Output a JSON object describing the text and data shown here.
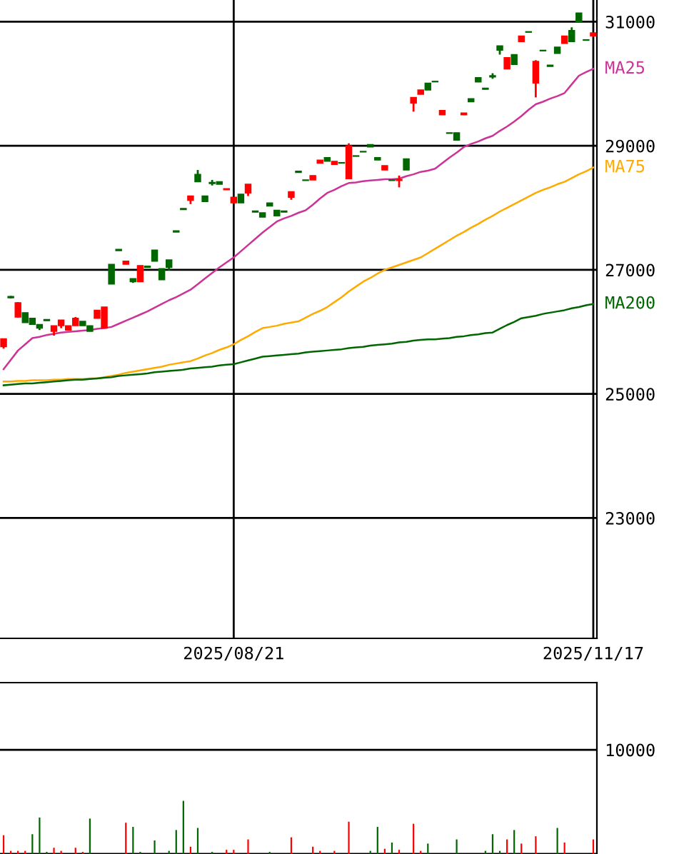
{
  "chart_data": [
    {
      "type": "candlestick",
      "categories": [
        null,
        null,
        null,
        null,
        null,
        null,
        null,
        null,
        null,
        null,
        null,
        null,
        null,
        null,
        null,
        null,
        null,
        null,
        null,
        null,
        null,
        null,
        null,
        null,
        null,
        null,
        null,
        null,
        null,
        null,
        null,
        null,
        "2025/08/21",
        null,
        null,
        null,
        null,
        null,
        null,
        null,
        null,
        null,
        null,
        null,
        null,
        null,
        null,
        null,
        null,
        null,
        null,
        null,
        null,
        null,
        null,
        null,
        null,
        null,
        null,
        null,
        null,
        null,
        null,
        null,
        null,
        null,
        null,
        null,
        null,
        null,
        null,
        null,
        null,
        null,
        null,
        null,
        null,
        null,
        null,
        null,
        null,
        null,
        "2025/11/17"
      ],
      "ohlc": [
        [
          25760,
          25890,
          25730,
          25890
        ],
        [
          26570,
          26580,
          26540,
          26550
        ],
        [
          26240,
          26480,
          26230,
          26470
        ],
        [
          26310,
          26310,
          26150,
          26150
        ],
        [
          26220,
          26220,
          26120,
          26120
        ],
        [
          26120,
          26120,
          26030,
          26060
        ],
        [
          26200,
          26200,
          26180,
          26180
        ],
        [
          26010,
          26100,
          25940,
          26100
        ],
        [
          26100,
          26190,
          26060,
          26190
        ],
        [
          26030,
          26100,
          26030,
          26100
        ],
        [
          26100,
          26240,
          26100,
          26220
        ],
        [
          26170,
          26170,
          26100,
          26100
        ],
        [
          26100,
          26100,
          26010,
          26010
        ],
        [
          26220,
          26350,
          26220,
          26350
        ],
        [
          26060,
          26400,
          26060,
          26400
        ],
        [
          27090,
          27090,
          26770,
          26770
        ],
        [
          27330,
          27330,
          27310,
          27310
        ],
        [
          27090,
          27140,
          27090,
          27140
        ],
        [
          26860,
          26860,
          26790,
          26810
        ],
        [
          26810,
          27070,
          26810,
          27070
        ],
        [
          27060,
          27060,
          27040,
          27040
        ],
        [
          27320,
          27320,
          27140,
          27140
        ],
        [
          27020,
          27020,
          26840,
          26840
        ],
        [
          27160,
          27160,
          26990,
          27040
        ],
        [
          27630,
          27630,
          27610,
          27610
        ],
        [
          27990,
          27990,
          27970,
          27970
        ],
        [
          28120,
          28190,
          28060,
          28190
        ],
        [
          28540,
          28610,
          28420,
          28420
        ],
        [
          28190,
          28190,
          28100,
          28100
        ],
        [
          28410,
          28450,
          28360,
          28390
        ],
        [
          28420,
          28420,
          28380,
          28380
        ],
        [
          28290,
          28310,
          28290,
          28310
        ],
        [
          28080,
          28170,
          28080,
          28170
        ],
        [
          28220,
          28220,
          28080,
          28080
        ],
        [
          28240,
          28380,
          28190,
          28380
        ],
        [
          27950,
          27950,
          27930,
          27930
        ],
        [
          27920,
          27920,
          27850,
          27850
        ],
        [
          28080,
          28080,
          28030,
          28030
        ],
        [
          27960,
          27960,
          27870,
          27870
        ],
        [
          27950,
          27950,
          27930,
          27930
        ],
        [
          28170,
          28260,
          28130,
          28260
        ],
        [
          28590,
          28590,
          28570,
          28570
        ],
        [
          28450,
          28450,
          28440,
          28440
        ],
        [
          28450,
          28520,
          28450,
          28520
        ],
        [
          28720,
          28770,
          28720,
          28770
        ],
        [
          28810,
          28810,
          28750,
          28750
        ],
        [
          28700,
          28750,
          28700,
          28750
        ],
        [
          28730,
          28730,
          28720,
          28720
        ],
        [
          28470,
          29040,
          28470,
          29000
        ],
        [
          28840,
          28840,
          28830,
          28830
        ],
        [
          28910,
          28910,
          28900,
          28900
        ],
        [
          29020,
          29020,
          28980,
          28980
        ],
        [
          28810,
          28810,
          28770,
          28770
        ],
        [
          28610,
          28680,
          28610,
          28680
        ],
        [
          28450,
          28450,
          28440,
          28440
        ],
        [
          28440,
          28520,
          28330,
          28460
        ],
        [
          28790,
          28790,
          28610,
          28610
        ],
        [
          29690,
          29780,
          29550,
          29780
        ],
        [
          29830,
          29900,
          29830,
          29900
        ],
        [
          30010,
          30010,
          29900,
          29900
        ],
        [
          30040,
          30040,
          30030,
          30030
        ],
        [
          29500,
          29570,
          29500,
          29570
        ],
        [
          29210,
          29210,
          29200,
          29200
        ],
        [
          29210,
          29210,
          29090,
          29090
        ],
        [
          29500,
          29530,
          29500,
          29530
        ],
        [
          29760,
          29760,
          29710,
          29710
        ],
        [
          30100,
          30100,
          30030,
          30030
        ],
        [
          29930,
          29930,
          29910,
          29910
        ],
        [
          30130,
          30170,
          30080,
          30110
        ],
        [
          30610,
          30610,
          30470,
          30540
        ],
        [
          30240,
          30420,
          30240,
          30420
        ],
        [
          30470,
          30470,
          30310,
          30310
        ],
        [
          30680,
          30770,
          30680,
          30770
        ],
        [
          30840,
          30840,
          30830,
          30830
        ],
        [
          30010,
          30380,
          29780,
          30360
        ],
        [
          30540,
          30540,
          30530,
          30530
        ],
        [
          30300,
          30300,
          30280,
          30280
        ],
        [
          30590,
          30590,
          30490,
          30490
        ],
        [
          30650,
          30770,
          30650,
          30770
        ],
        [
          30860,
          30910,
          30680,
          30680
        ],
        [
          31140,
          31140,
          31000,
          31000
        ],
        [
          30710,
          30710,
          30700,
          30700
        ],
        [
          30770,
          30820,
          30770,
          30820
        ]
      ],
      "colors": [
        "#ff0000",
        "#006600",
        "#ff0000",
        "#006600",
        "#006600",
        "#006600",
        "#006600",
        "#ff0000",
        "#ff0000",
        "#ff0000",
        "#ff0000",
        "#006600",
        "#006600",
        "#ff0000",
        "#ff0000",
        "#006600",
        "#006600",
        "#ff0000",
        "#006600",
        "#ff0000",
        "#006600",
        "#006600",
        "#006600",
        "#006600",
        "#006600",
        "#006600",
        "#ff0000",
        "#006600",
        "#006600",
        "#006600",
        "#006600",
        "#ff0000",
        "#ff0000",
        "#006600",
        "#ff0000",
        "#006600",
        "#006600",
        "#006600",
        "#006600",
        "#006600",
        "#ff0000",
        "#006600",
        "#006600",
        "#ff0000",
        "#ff0000",
        "#006600",
        "#ff0000",
        "#006600",
        "#ff0000",
        "#006600",
        "#006600",
        "#006600",
        "#006600",
        "#ff0000",
        "#006600",
        "#ff0000",
        "#006600",
        "#ff0000",
        "#ff0000",
        "#006600",
        "#006600",
        "#ff0000",
        "#006600",
        "#006600",
        "#ff0000",
        "#006600",
        "#006600",
        "#006600",
        "#006600",
        "#006600",
        "#ff0000",
        "#006600",
        "#ff0000",
        "#006600",
        "#ff0000",
        "#006600",
        "#006600",
        "#006600",
        "#ff0000",
        "#006600",
        "#006600",
        "#006600",
        "#ff0000"
      ],
      "series": [
        {
          "name": "MA25",
          "type": "line",
          "color": "#cc3399",
          "values": [
            25400,
            25550,
            25700,
            25800,
            25900,
            25920,
            25950,
            25970,
            25990,
            26000,
            26010,
            26020,
            26030,
            26050,
            26060,
            26080,
            26130,
            26180,
            26230,
            26280,
            26330,
            26390,
            26450,
            26510,
            26560,
            26620,
            26680,
            26770,
            26860,
            26950,
            27040,
            27120,
            27200,
            27300,
            27400,
            27500,
            27600,
            27690,
            27780,
            27830,
            27870,
            27920,
            27960,
            28050,
            28150,
            28240,
            28290,
            28350,
            28400,
            28410,
            28430,
            28440,
            28450,
            28460,
            28460,
            28470,
            28510,
            28540,
            28580,
            28600,
            28630,
            28720,
            28810,
            28890,
            28980,
            29030,
            29070,
            29120,
            29160,
            29240,
            29310,
            29390,
            29480,
            29580,
            29670,
            29710,
            29760,
            29800,
            29850,
            29990,
            30130,
            30190,
            30240
          ]
        },
        {
          "name": "MA75",
          "type": "line",
          "color": "#ffaa00",
          "values": [
            25200,
            25200,
            25210,
            25210,
            25220,
            25220,
            25220,
            25230,
            25230,
            25240,
            25240,
            25240,
            25250,
            25250,
            25270,
            25290,
            25310,
            25340,
            25360,
            25380,
            25400,
            25420,
            25440,
            25470,
            25490,
            25510,
            25530,
            25570,
            25620,
            25660,
            25710,
            25750,
            25800,
            25870,
            25930,
            26000,
            26060,
            26080,
            26100,
            26130,
            26150,
            26170,
            26230,
            26290,
            26340,
            26400,
            26480,
            26560,
            26650,
            26730,
            26810,
            26870,
            26940,
            27000,
            27040,
            27080,
            27120,
            27160,
            27200,
            27270,
            27340,
            27410,
            27480,
            27550,
            27610,
            27680,
            27740,
            27810,
            27870,
            27940,
            28000,
            28060,
            28120,
            28180,
            28240,
            28290,
            28330,
            28380,
            28420,
            28480,
            28540,
            28590,
            28650
          ]
        },
        {
          "name": "MA200",
          "type": "line",
          "color": "#006600",
          "values": [
            25140,
            25150,
            25160,
            25170,
            25170,
            25180,
            25190,
            25200,
            25210,
            25220,
            25230,
            25230,
            25240,
            25250,
            25260,
            25270,
            25290,
            25300,
            25310,
            25320,
            25330,
            25350,
            25360,
            25370,
            25380,
            25390,
            25410,
            25420,
            25430,
            25440,
            25460,
            25470,
            25480,
            25510,
            25540,
            25570,
            25600,
            25610,
            25620,
            25630,
            25640,
            25650,
            25670,
            25680,
            25690,
            25700,
            25710,
            25720,
            25740,
            25750,
            25760,
            25780,
            25790,
            25800,
            25810,
            25830,
            25840,
            25860,
            25870,
            25880,
            25880,
            25890,
            25900,
            25920,
            25930,
            25950,
            25960,
            25980,
            25990,
            26050,
            26110,
            26160,
            26220,
            26240,
            26260,
            26290,
            26310,
            26330,
            26350,
            26380,
            26400,
            26430,
            26450
          ]
        }
      ],
      "ylim": [
        21060,
        31350
      ],
      "yticks": [
        23000,
        25000,
        27000,
        29000,
        31000
      ],
      "grid": true,
      "legend": false
    },
    {
      "type": "bar",
      "categories": [
        null,
        null,
        null,
        null,
        null,
        null,
        null,
        null,
        null,
        null,
        null,
        null,
        null,
        null,
        null,
        null,
        null,
        null,
        null,
        null,
        null,
        null,
        null,
        null,
        null,
        null,
        null,
        null,
        null,
        null,
        null,
        null,
        "2025/08/21",
        null,
        null,
        null,
        null,
        null,
        null,
        null,
        null,
        null,
        null,
        null,
        null,
        null,
        null,
        null,
        null,
        null,
        null,
        null,
        null,
        null,
        null,
        null,
        null,
        null,
        null,
        null,
        null,
        null,
        null,
        null,
        null,
        null,
        null,
        null,
        null,
        null,
        null,
        null,
        null,
        null,
        null,
        null,
        null,
        null,
        null,
        null,
        null,
        null,
        "2025/11/17"
      ],
      "values": [
        1800,
        300,
        300,
        300,
        1900,
        3500,
        200,
        600,
        300,
        null,
        600,
        200,
        3400,
        null,
        null,
        null,
        null,
        3000,
        2600,
        200,
        null,
        1300,
        null,
        300,
        2300,
        5100,
        700,
        2500,
        null,
        200,
        null,
        400,
        400,
        null,
        1400,
        null,
        null,
        200,
        null,
        null,
        1600,
        null,
        null,
        700,
        300,
        null,
        300,
        null,
        3100,
        null,
        null,
        300,
        2600,
        500,
        1100,
        400,
        null,
        2900,
        300,
        1000,
        null,
        null,
        null,
        1400,
        null,
        null,
        null,
        300,
        1900,
        300,
        1400,
        2300,
        1000,
        null,
        1700,
        null,
        null,
        2500,
        1100,
        null,
        null,
        null,
        1400
      ],
      "colors": [
        "#ff0000",
        "#ff0000",
        "#ff0000",
        "#ff0000",
        "#006600",
        "#006600",
        "#006600",
        "#ff0000",
        "#ff0000",
        null,
        "#ff0000",
        "#ff0000",
        "#006600",
        null,
        null,
        null,
        null,
        "#ff0000",
        "#006600",
        "#006600",
        null,
        "#006600",
        null,
        "#006600",
        "#006600",
        "#006600",
        "#ff0000",
        "#006600",
        null,
        "#006600",
        null,
        "#ff0000",
        "#ff0000",
        null,
        "#ff0000",
        null,
        null,
        "#006600",
        null,
        null,
        "#ff0000",
        null,
        null,
        "#ff0000",
        "#ff0000",
        null,
        "#ff0000",
        null,
        "#ff0000",
        null,
        null,
        "#006600",
        "#006600",
        "#ff0000",
        "#006600",
        "#ff0000",
        null,
        "#ff0000",
        "#ff0000",
        "#006600",
        null,
        null,
        null,
        "#006600",
        null,
        null,
        null,
        "#006600",
        "#006600",
        "#006600",
        "#ff0000",
        "#006600",
        "#ff0000",
        null,
        "#ff0000",
        null,
        null,
        "#006600",
        "#ff0000",
        null,
        null,
        null,
        "#ff0000"
      ],
      "ylim": [
        0,
        16440
      ],
      "yticks": [
        {
          "value": 0,
          "label": null
        },
        10000
      ],
      "grid": "y",
      "tick_labels": "y"
    }
  ]
}
